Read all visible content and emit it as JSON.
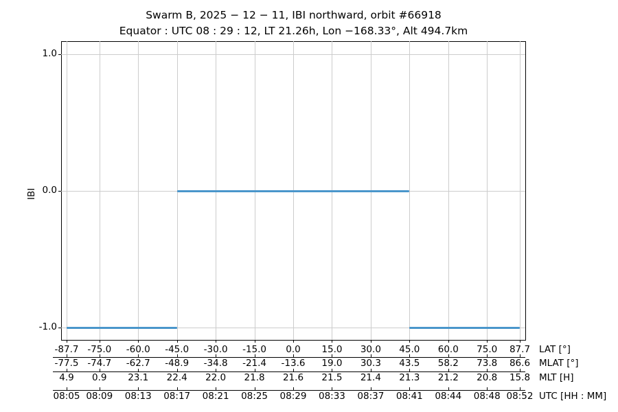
{
  "figure": {
    "title_line1": "Swarm B,  2025 − 12 − 11,  IBI northward,  orbit #66918",
    "title_line2": "Equator :  UTC 08 : 29 : 12,  LT 21.26h,  Lon  −168.33°,  Alt 494.7km"
  },
  "chart_data": {
    "type": "line",
    "subtype": "step-horizontal-segments",
    "title": "Swarm B, 2025 − 12 − 11, IBI northward, orbit #66918",
    "subtitle": "Equator : UTC 08 : 29 : 12, LT 21.26h, Lon −168.33°, Alt 494.7km",
    "ylabel": "IBI",
    "ylim": [
      -1.09,
      1.1
    ],
    "grid": true,
    "grid_color": "#cccccc",
    "line_color": "#4a96cb",
    "yticks": [
      {
        "value": 1.0,
        "label": "1.0"
      },
      {
        "value": 0.0,
        "label": "0.0"
      },
      {
        "value": -1.0,
        "label": "-1.0"
      }
    ],
    "x_tick_lats": [
      -87.7,
      -75.0,
      -60.0,
      -45.0,
      -30.0,
      -15.0,
      0.0,
      15.0,
      30.0,
      45.0,
      60.0,
      75.0,
      87.7
    ],
    "series": [
      {
        "name": "IBI",
        "segments": [
          {
            "lat_start": -87.7,
            "lat_end": -45.0,
            "value": -1.0
          },
          {
            "lat_start": -45.0,
            "lat_end": 45.0,
            "value": 0.0
          },
          {
            "lat_start": 45.0,
            "lat_end": 87.7,
            "value": -1.0
          }
        ]
      }
    ],
    "x_axis_rows": [
      {
        "name": "LAT [°]",
        "labels": [
          "-87.7",
          "-75.0",
          "-60.0",
          "-45.0",
          "-30.0",
          "-15.0",
          "0.0",
          "15.0",
          "30.0",
          "45.0",
          "60.0",
          "75.0",
          "87.7"
        ]
      },
      {
        "name": "MLAT [°]",
        "labels": [
          "-77.5",
          "-74.7",
          "-62.7",
          "-48.9",
          "-34.8",
          "-21.4",
          "-13.6",
          "19.0",
          "30.3",
          "43.5",
          "58.2",
          "73.8",
          "86.6"
        ]
      },
      {
        "name": "MLT [H]",
        "labels": [
          "4.9",
          "0.9",
          "23.1",
          "22.4",
          "22.0",
          "21.8",
          "21.6",
          "21.5",
          "21.4",
          "21.3",
          "21.2",
          "20.8",
          "15.8"
        ]
      },
      {
        "name": "UTC [HH : MM]",
        "labels": [
          "08:05",
          "08:09",
          "08:13",
          "08:17",
          "08:21",
          "08:25",
          "08:29",
          "08:33",
          "08:37",
          "08:41",
          "08:44",
          "08:48",
          "08:52"
        ]
      }
    ]
  }
}
